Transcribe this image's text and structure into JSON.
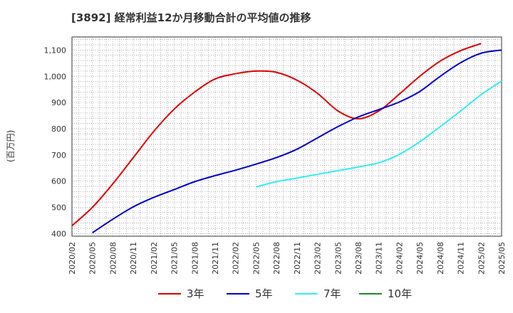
{
  "chart_data": {
    "type": "line",
    "title": "[3892]  経常利益12か月移動合計の平均値の推移",
    "ylabel": "(百万円)",
    "xlabel": "",
    "ylim": [
      390,
      1150
    ],
    "yticks": [
      "400",
      "500",
      "600",
      "700",
      "800",
      "900",
      "1,000",
      "1,100"
    ],
    "ytick_values": [
      400,
      500,
      600,
      700,
      800,
      900,
      1000,
      1100
    ],
    "xticks": [
      "2020/02",
      "2020/05",
      "2020/08",
      "2020/11",
      "2021/02",
      "2021/05",
      "2021/08",
      "2021/11",
      "2022/02",
      "2022/05",
      "2022/08",
      "2022/11",
      "2023/02",
      "2023/05",
      "2023/08",
      "2023/11",
      "2024/02",
      "2024/05",
      "2024/08",
      "2024/11",
      "2025/02",
      "2025/05"
    ],
    "grid": true,
    "legend_position": "bottom",
    "series": [
      {
        "name": "3年",
        "color": "#dd0000",
        "points": [
          [
            "2020/02",
            430
          ],
          [
            "2020/05",
            500
          ],
          [
            "2020/08",
            590
          ],
          [
            "2020/11",
            690
          ],
          [
            "2021/02",
            790
          ],
          [
            "2021/05",
            875
          ],
          [
            "2021/08",
            940
          ],
          [
            "2021/11",
            990
          ],
          [
            "2022/02",
            1010
          ],
          [
            "2022/05",
            1020
          ],
          [
            "2022/08",
            1015
          ],
          [
            "2022/11",
            985
          ],
          [
            "2023/02",
            935
          ],
          [
            "2023/05",
            868
          ],
          [
            "2023/08",
            838
          ],
          [
            "2023/11",
            868
          ],
          [
            "2024/02",
            932
          ],
          [
            "2024/05",
            1000
          ],
          [
            "2024/08",
            1058
          ],
          [
            "2024/11",
            1098
          ],
          [
            "2025/02",
            1125
          ]
        ]
      },
      {
        "name": "5年",
        "color": "#0000cc",
        "points": [
          [
            "2020/05",
            403
          ],
          [
            "2020/08",
            455
          ],
          [
            "2020/11",
            502
          ],
          [
            "2021/02",
            538
          ],
          [
            "2021/05",
            568
          ],
          [
            "2021/08",
            598
          ],
          [
            "2021/11",
            621
          ],
          [
            "2022/02",
            642
          ],
          [
            "2022/05",
            665
          ],
          [
            "2022/08",
            690
          ],
          [
            "2022/11",
            722
          ],
          [
            "2023/02",
            765
          ],
          [
            "2023/05",
            808
          ],
          [
            "2023/08",
            845
          ],
          [
            "2023/11",
            873
          ],
          [
            "2024/02",
            902
          ],
          [
            "2024/05",
            942
          ],
          [
            "2024/08",
            1000
          ],
          [
            "2024/11",
            1052
          ],
          [
            "2025/02",
            1088
          ],
          [
            "2025/05",
            1100
          ]
        ]
      },
      {
        "name": "7年",
        "color": "#33eeee",
        "points": [
          [
            "2022/05",
            578
          ],
          [
            "2022/08",
            598
          ],
          [
            "2022/11",
            612
          ],
          [
            "2023/02",
            626
          ],
          [
            "2023/05",
            640
          ],
          [
            "2023/08",
            654
          ],
          [
            "2023/11",
            670
          ],
          [
            "2024/02",
            702
          ],
          [
            "2024/05",
            750
          ],
          [
            "2024/08",
            808
          ],
          [
            "2024/11",
            868
          ],
          [
            "2025/02",
            930
          ],
          [
            "2025/05",
            982
          ]
        ]
      },
      {
        "name": "10年",
        "color": "#228822",
        "points": []
      }
    ]
  }
}
